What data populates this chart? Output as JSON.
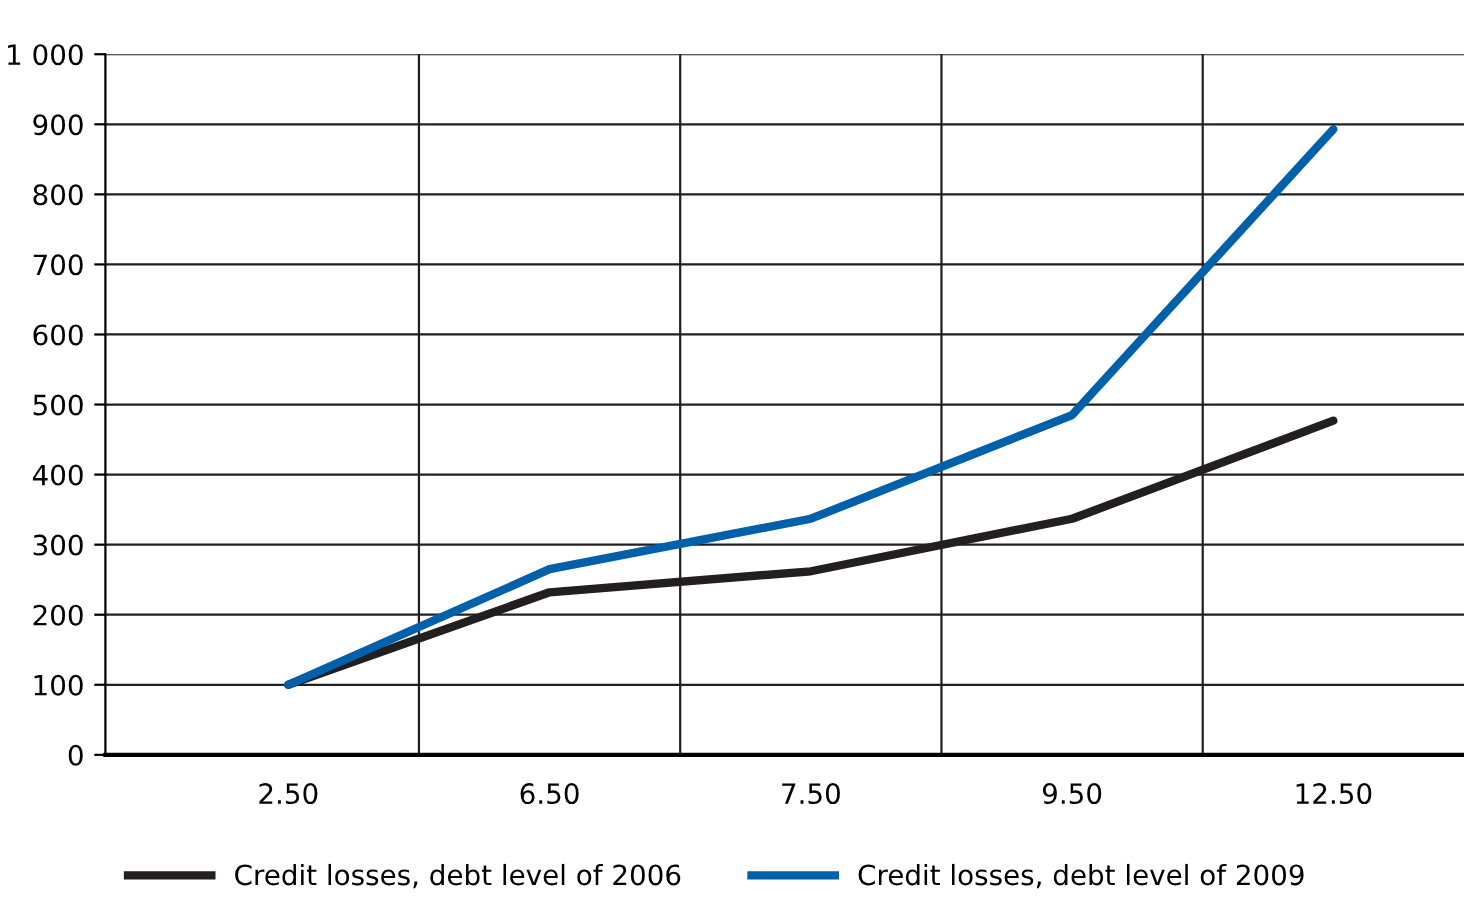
{
  "chart_data": {
    "type": "line",
    "categories": [
      "2.50",
      "6.50",
      "7.50",
      "9.50",
      "12.50"
    ],
    "series": [
      {
        "name": "Credit losses, debt level of 2006",
        "color": "#231f20",
        "values": [
          100,
          232,
          262,
          337,
          477
        ]
      },
      {
        "name": "Credit losses, debt level of 2009",
        "color": "#0060aa",
        "values": [
          100,
          265,
          337,
          485,
          893
        ]
      }
    ],
    "ylim": [
      0,
      1000
    ],
    "yticks": [
      0,
      100,
      200,
      300,
      400,
      500,
      600,
      700,
      800,
      900,
      {
        "value": 1000,
        "label": "1 000"
      }
    ],
    "grid": true,
    "legend": "bottom",
    "marker": "none",
    "line_style": "solid"
  }
}
